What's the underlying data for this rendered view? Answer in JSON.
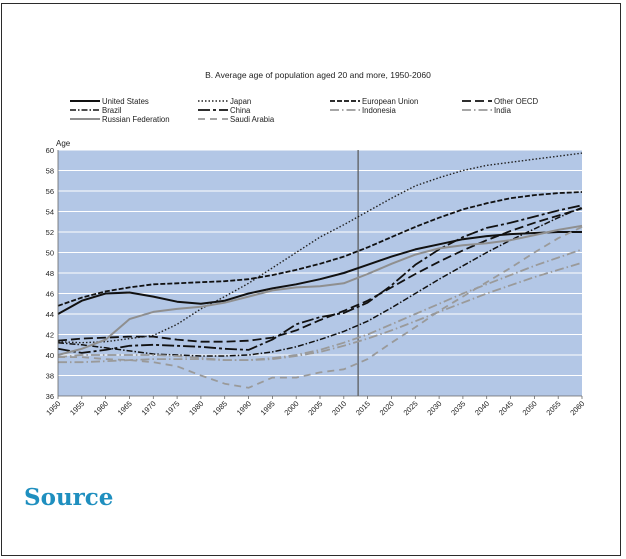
{
  "chart_data": {
    "type": "line",
    "title": "B. Average age of population aged 20 and more, 1950-2060",
    "ylabel": "Age",
    "xlabel": "",
    "ylim": [
      36,
      60
    ],
    "yticks": [
      "36",
      "38",
      "40",
      "42",
      "44",
      "46",
      "48",
      "50",
      "52",
      "54",
      "56",
      "58",
      "60"
    ],
    "xticks": [
      "1950",
      "1955",
      "1960",
      "1965",
      "1970",
      "1975",
      "1980",
      "1985",
      "1990",
      "1995",
      "2000",
      "2005",
      "2010",
      "2015",
      "2020",
      "2025",
      "2030",
      "2035",
      "2040",
      "2045",
      "2050",
      "2055",
      "2060"
    ],
    "projection_start": 2013,
    "plot_background": "#b3c7e6",
    "grid": "horizontal",
    "legend_placement": "top",
    "series": [
      {
        "name": "United States",
        "color": "#111111",
        "dash": "solid",
        "width": 2,
        "points": [
          [
            1950,
            44
          ],
          [
            1955,
            45.3
          ],
          [
            1960,
            46
          ],
          [
            1965,
            46.1
          ],
          [
            1970,
            45.7
          ],
          [
            1975,
            45.2
          ],
          [
            1980,
            45
          ],
          [
            1985,
            45.3
          ],
          [
            1990,
            46
          ],
          [
            1995,
            46.5
          ],
          [
            2000,
            46.9
          ],
          [
            2005,
            47.4
          ],
          [
            2010,
            48
          ],
          [
            2015,
            48.8
          ],
          [
            2020,
            49.6
          ],
          [
            2025,
            50.3
          ],
          [
            2030,
            50.8
          ],
          [
            2035,
            51.3
          ],
          [
            2040,
            51.6
          ],
          [
            2045,
            51.8
          ],
          [
            2050,
            51.9
          ],
          [
            2055,
            52
          ],
          [
            2060,
            52
          ]
        ]
      },
      {
        "name": "Japan",
        "color": "#222222",
        "dash": "1.5 2",
        "width": 1.4,
        "points": [
          [
            1950,
            41.3
          ],
          [
            1955,
            41.2
          ],
          [
            1960,
            41.3
          ],
          [
            1965,
            41.6
          ],
          [
            1970,
            41.9
          ],
          [
            1975,
            43
          ],
          [
            1980,
            44.5
          ],
          [
            1985,
            45.7
          ],
          [
            1990,
            47
          ],
          [
            1995,
            48.5
          ],
          [
            2000,
            50
          ],
          [
            2005,
            51.5
          ],
          [
            2010,
            52.7
          ],
          [
            2015,
            54
          ],
          [
            2020,
            55.3
          ],
          [
            2025,
            56.5
          ],
          [
            2030,
            57.3
          ],
          [
            2035,
            58
          ],
          [
            2040,
            58.5
          ],
          [
            2045,
            58.8
          ],
          [
            2050,
            59.1
          ],
          [
            2055,
            59.4
          ],
          [
            2060,
            59.7
          ]
        ]
      },
      {
        "name": "European Union",
        "color": "#111111",
        "dash": "5 2",
        "width": 1.8,
        "points": [
          [
            1950,
            44.8
          ],
          [
            1955,
            45.6
          ],
          [
            1960,
            46.2
          ],
          [
            1965,
            46.6
          ],
          [
            1970,
            46.9
          ],
          [
            1975,
            47
          ],
          [
            1980,
            47.1
          ],
          [
            1985,
            47.2
          ],
          [
            1990,
            47.4
          ],
          [
            1995,
            47.8
          ],
          [
            2000,
            48.3
          ],
          [
            2005,
            48.9
          ],
          [
            2010,
            49.6
          ],
          [
            2015,
            50.5
          ],
          [
            2020,
            51.5
          ],
          [
            2025,
            52.5
          ],
          [
            2030,
            53.4
          ],
          [
            2035,
            54.2
          ],
          [
            2040,
            54.8
          ],
          [
            2045,
            55.3
          ],
          [
            2050,
            55.6
          ],
          [
            2055,
            55.8
          ],
          [
            2060,
            55.9
          ]
        ]
      },
      {
        "name": "Other OECD",
        "color": "#111111",
        "dash": "9 4",
        "width": 1.8,
        "points": [
          [
            1950,
            41.4
          ],
          [
            1955,
            41.6
          ],
          [
            1960,
            41.7
          ],
          [
            1965,
            41.8
          ],
          [
            1970,
            41.8
          ],
          [
            1975,
            41.5
          ],
          [
            1980,
            41.3
          ],
          [
            1985,
            41.3
          ],
          [
            1990,
            41.4
          ],
          [
            1995,
            41.7
          ],
          [
            2000,
            42.4
          ],
          [
            2005,
            43.4
          ],
          [
            2010,
            44.3
          ],
          [
            2015,
            45.3
          ],
          [
            2020,
            46.6
          ],
          [
            2025,
            47.9
          ],
          [
            2030,
            49.1
          ],
          [
            2035,
            50.2
          ],
          [
            2040,
            51.2
          ],
          [
            2045,
            52.1
          ],
          [
            2050,
            52.9
          ],
          [
            2055,
            53.6
          ],
          [
            2060,
            54.3
          ]
        ]
      },
      {
        "name": "Brazil",
        "color": "#111111",
        "dash": "6 2 1.5 2",
        "width": 1.5,
        "points": [
          [
            1950,
            41.2
          ],
          [
            1955,
            41
          ],
          [
            1960,
            40.7
          ],
          [
            1965,
            40.4
          ],
          [
            1970,
            40.1
          ],
          [
            1975,
            40
          ],
          [
            1980,
            39.9
          ],
          [
            1985,
            39.9
          ],
          [
            1990,
            40
          ],
          [
            1995,
            40.3
          ],
          [
            2000,
            40.8
          ],
          [
            2005,
            41.5
          ],
          [
            2010,
            42.3
          ],
          [
            2015,
            43.3
          ],
          [
            2020,
            44.6
          ],
          [
            2025,
            46
          ],
          [
            2030,
            47.4
          ],
          [
            2035,
            48.7
          ],
          [
            2040,
            50
          ],
          [
            2045,
            51.2
          ],
          [
            2050,
            52.3
          ],
          [
            2055,
            53.4
          ],
          [
            2060,
            54.4
          ]
        ]
      },
      {
        "name": "China",
        "color": "#111111",
        "dash": "12 3 3 3",
        "width": 1.8,
        "points": [
          [
            1950,
            40.6
          ],
          [
            1955,
            40.2
          ],
          [
            1960,
            40.5
          ],
          [
            1965,
            40.9
          ],
          [
            1970,
            41
          ],
          [
            1975,
            40.9
          ],
          [
            1980,
            40.8
          ],
          [
            1985,
            40.6
          ],
          [
            1990,
            40.5
          ],
          [
            1995,
            41.5
          ],
          [
            2000,
            43
          ],
          [
            2005,
            43.7
          ],
          [
            2010,
            44.1
          ],
          [
            2015,
            45.1
          ],
          [
            2020,
            46.8
          ],
          [
            2025,
            48.8
          ],
          [
            2030,
            50.3
          ],
          [
            2035,
            51.5
          ],
          [
            2040,
            52.4
          ],
          [
            2045,
            52.9
          ],
          [
            2050,
            53.5
          ],
          [
            2055,
            54.1
          ],
          [
            2060,
            54.6
          ]
        ]
      },
      {
        "name": "Indonesia",
        "color": "#9a9a9a",
        "dash": "9 3 1.5 3",
        "width": 1.8,
        "points": [
          [
            1950,
            39.8
          ],
          [
            1955,
            40
          ],
          [
            1960,
            40
          ],
          [
            1965,
            40
          ],
          [
            1970,
            40
          ],
          [
            1975,
            39.9
          ],
          [
            1980,
            39.7
          ],
          [
            1985,
            39.5
          ],
          [
            1990,
            39.5
          ],
          [
            1995,
            39.7
          ],
          [
            2000,
            40
          ],
          [
            2005,
            40.5
          ],
          [
            2010,
            41.2
          ],
          [
            2015,
            42
          ],
          [
            2020,
            43
          ],
          [
            2025,
            44
          ],
          [
            2030,
            45
          ],
          [
            2035,
            46
          ],
          [
            2040,
            46.9
          ],
          [
            2045,
            47.8
          ],
          [
            2050,
            48.7
          ],
          [
            2055,
            49.5
          ],
          [
            2060,
            50.3
          ]
        ]
      },
      {
        "name": "India",
        "color": "#9a9a9a",
        "dash": "9 3 1.5 3",
        "width": 1.8,
        "points": [
          [
            1950,
            39.3
          ],
          [
            1955,
            39.3
          ],
          [
            1960,
            39.4
          ],
          [
            1965,
            39.5
          ],
          [
            1970,
            39.6
          ],
          [
            1975,
            39.6
          ],
          [
            1980,
            39.6
          ],
          [
            1985,
            39.5
          ],
          [
            1990,
            39.5
          ],
          [
            1995,
            39.6
          ],
          [
            2000,
            39.9
          ],
          [
            2005,
            40.3
          ],
          [
            2010,
            40.9
          ],
          [
            2015,
            41.6
          ],
          [
            2020,
            42.4
          ],
          [
            2025,
            43.3
          ],
          [
            2030,
            44.2
          ],
          [
            2035,
            45.1
          ],
          [
            2040,
            46
          ],
          [
            2045,
            46.8
          ],
          [
            2050,
            47.6
          ],
          [
            2055,
            48.3
          ],
          [
            2060,
            49
          ]
        ]
      },
      {
        "name": "Russian Federation",
        "color": "#8f8f8f",
        "dash": "solid",
        "width": 2,
        "points": [
          [
            1950,
            40
          ],
          [
            1955,
            40.6
          ],
          [
            1960,
            41.5
          ],
          [
            1965,
            43.5
          ],
          [
            1970,
            44.2
          ],
          [
            1975,
            44.5
          ],
          [
            1980,
            44.7
          ],
          [
            1985,
            45.1
          ],
          [
            1990,
            45.7
          ],
          [
            1995,
            46.3
          ],
          [
            2000,
            46.6
          ],
          [
            2005,
            46.7
          ],
          [
            2010,
            47
          ],
          [
            2015,
            47.9
          ],
          [
            2020,
            48.9
          ],
          [
            2025,
            49.8
          ],
          [
            2030,
            50.4
          ],
          [
            2035,
            50.7
          ],
          [
            2040,
            50.9
          ],
          [
            2045,
            51.2
          ],
          [
            2050,
            51.7
          ],
          [
            2055,
            52.2
          ],
          [
            2060,
            52.6
          ]
        ]
      },
      {
        "name": "Saudi Arabia",
        "color": "#9a9a9a",
        "dash": "7 5",
        "width": 1.8,
        "points": [
          [
            1950,
            39.8
          ],
          [
            1955,
            39.8
          ],
          [
            1960,
            39.6
          ],
          [
            1965,
            39.5
          ],
          [
            1970,
            39.3
          ],
          [
            1975,
            38.9
          ],
          [
            1980,
            38
          ],
          [
            1985,
            37.2
          ],
          [
            1990,
            36.8
          ],
          [
            1995,
            37.8
          ],
          [
            2000,
            37.8
          ],
          [
            2005,
            38.3
          ],
          [
            2010,
            38.6
          ],
          [
            2015,
            39.6
          ],
          [
            2020,
            41.2
          ],
          [
            2025,
            42.7
          ],
          [
            2030,
            44.3
          ],
          [
            2035,
            45.7
          ],
          [
            2040,
            47.1
          ],
          [
            2045,
            48.5
          ],
          [
            2050,
            50
          ],
          [
            2055,
            51.4
          ],
          [
            2060,
            52.5
          ]
        ]
      }
    ]
  },
  "page": {
    "source_heading": "Source"
  }
}
